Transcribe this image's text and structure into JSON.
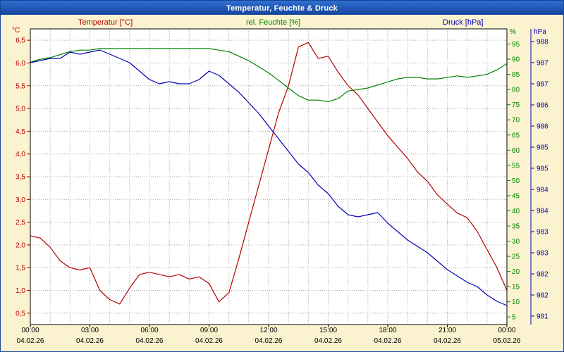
{
  "window": {
    "title": "Temperatur, Feuchte & Druck"
  },
  "chart_data": {
    "type": "line",
    "title": "Temperatur, Feuchte & Druck",
    "grid": {
      "color": "#aaaaaa",
      "dash": "1,2"
    },
    "plot": {
      "background": "#ffffff",
      "border_color": "#000000"
    },
    "x_axis": {
      "hours_start": 0,
      "hours_end": 24,
      "gridline_step_hours": 1,
      "tick_hours": [
        0,
        3,
        6,
        9,
        12,
        15,
        18,
        21,
        24
      ],
      "time_labels": [
        "00:00",
        "03:00",
        "06:00",
        "09:00",
        "12:00",
        "15:00",
        "18:00",
        "21:00",
        "00:00"
      ],
      "date_labels": [
        "04.02.26",
        "04.02.26",
        "04.02.26",
        "04.02.26",
        "04.02.26",
        "04.02.26",
        "04.02.26",
        "04.02.26",
        "05.02.26"
      ],
      "label_color": "#000000"
    },
    "axes": {
      "temperature": {
        "title": "Temperatur [°C]",
        "unit": "°C",
        "color": "#b40000",
        "min": 0.25,
        "max": 6.75,
        "tick_values": [
          6.5,
          6.0,
          5.5,
          5.0,
          4.5,
          4.0,
          3.5,
          3.0,
          2.5,
          2.0,
          1.5,
          1.0,
          0.5
        ],
        "tick_labels": [
          "6,5",
          "6,0",
          "5,5",
          "5,0",
          "4,5",
          "4,0",
          "3,5",
          "3,0",
          "2,5",
          "2,0",
          "1,5",
          "1,0",
          "0,5"
        ]
      },
      "humidity": {
        "title": "rel. Feuchte [%]",
        "unit": "%",
        "color": "#008000",
        "min": 2.5,
        "max": 100,
        "tick_values": [
          95,
          90,
          85,
          80,
          75,
          70,
          65,
          60,
          55,
          50,
          45,
          40,
          35,
          30,
          25,
          20,
          15,
          10,
          5
        ],
        "tick_labels": [
          "95",
          "90",
          "85",
          "80",
          "75",
          "70",
          "65",
          "60",
          "55",
          "50",
          "45",
          "40",
          "35",
          "30",
          "25",
          "20",
          "15",
          "10",
          "5"
        ]
      },
      "pressure": {
        "title": "Druck [hPa]",
        "unit": "hPa",
        "color": "#0000b4",
        "min": 981.3,
        "max": 988.3,
        "tick_values": [
          988,
          987.5,
          987,
          986.5,
          986,
          985.5,
          985,
          984.5,
          984,
          983.5,
          983,
          982.5,
          982,
          981.5
        ],
        "tick_labels": [
          "988",
          "987",
          "987",
          "986",
          "986",
          "985",
          "985",
          "984",
          "984",
          "983",
          "983",
          "982",
          "982",
          "981"
        ]
      }
    },
    "series": [
      {
        "name": "Temperatur",
        "axis": "temperature",
        "color": "#b40000",
        "x0": 0,
        "dx": 0.5,
        "values": [
          2.2,
          2.15,
          1.95,
          1.65,
          1.5,
          1.45,
          1.5,
          1.0,
          0.8,
          0.7,
          1.05,
          1.35,
          1.4,
          1.35,
          1.3,
          1.35,
          1.25,
          1.3,
          1.15,
          0.75,
          0.95,
          1.7,
          2.5,
          3.3,
          4.1,
          4.9,
          5.5,
          6.35,
          6.45,
          6.1,
          6.15,
          5.8,
          5.5,
          5.3,
          5.0,
          4.7,
          4.4,
          4.15,
          3.9,
          3.6,
          3.4,
          3.1,
          2.9,
          2.7,
          2.6,
          2.3,
          1.9,
          1.5,
          1.0
        ]
      },
      {
        "name": "rel. Feuchte",
        "axis": "humidity",
        "color": "#008000",
        "x0": 0,
        "dx": 0.5,
        "values": [
          89,
          90,
          90.5,
          91.5,
          92.5,
          93,
          93,
          93.5,
          93.5,
          93.5,
          93.5,
          93.5,
          93.5,
          93.5,
          93.5,
          93.5,
          93.5,
          93.5,
          93.5,
          93,
          92.5,
          91,
          89.5,
          87.5,
          85.5,
          83,
          80.5,
          78,
          76.5,
          76.5,
          76,
          77,
          79.5,
          80,
          80.5,
          81.5,
          82.5,
          83.5,
          84,
          84,
          83.5,
          83.5,
          84,
          84.5,
          84,
          84.5,
          85,
          86.5,
          88.5
        ]
      },
      {
        "name": "Druck",
        "axis": "pressure",
        "color": "#0000b4",
        "x0": 0,
        "dx": 0.5,
        "values": [
          987.5,
          987.55,
          987.6,
          987.6,
          987.75,
          987.7,
          987.75,
          987.8,
          987.7,
          987.6,
          987.5,
          987.3,
          987.1,
          987.0,
          987.05,
          987.0,
          987.0,
          987.1,
          987.3,
          987.2,
          987.0,
          986.8,
          986.55,
          986.3,
          986.0,
          985.7,
          985.4,
          985.1,
          984.9,
          984.6,
          984.4,
          984.1,
          983.9,
          983.85,
          983.9,
          983.95,
          983.7,
          983.5,
          983.3,
          983.15,
          983.0,
          982.8,
          982.6,
          982.45,
          982.3,
          982.2,
          982.0,
          981.85,
          981.75
        ]
      }
    ]
  }
}
